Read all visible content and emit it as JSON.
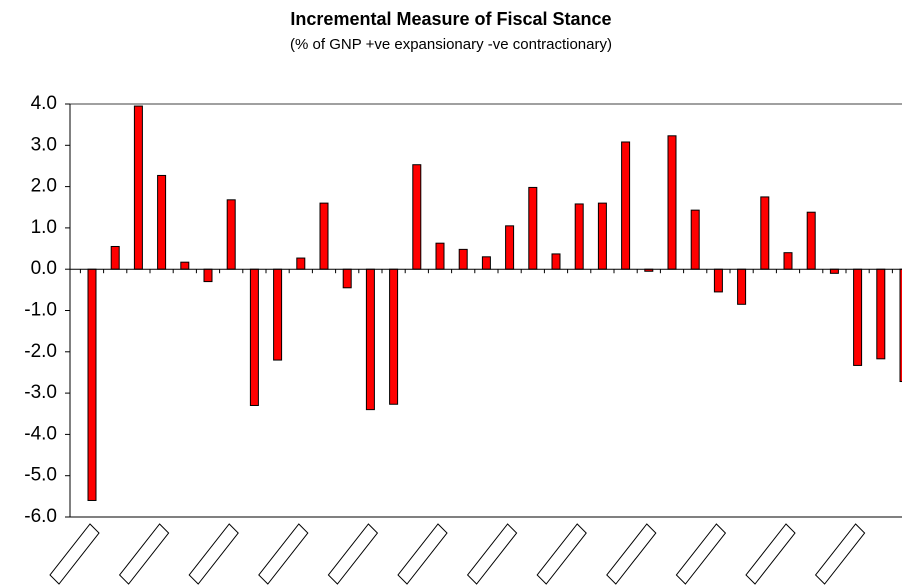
{
  "chart_data": {
    "type": "bar",
    "title": "Incremental Measure of Fiscal Stance",
    "subtitle": "(% of GNP +ve expansionary -ve contractionary)",
    "categories": [
      null,
      null,
      null,
      null,
      null,
      null,
      null,
      null,
      null,
      null,
      null,
      null,
      null,
      null,
      null,
      null,
      null,
      null,
      null,
      null,
      null,
      null,
      null,
      null,
      null,
      null,
      null,
      null,
      null,
      null,
      null,
      null,
      null,
      null,
      null,
      null
    ],
    "values": [
      -5.6,
      0.55,
      3.95,
      2.27,
      0.17,
      -0.3,
      1.68,
      -3.3,
      -2.2,
      0.27,
      1.6,
      -0.45,
      -3.4,
      -3.27,
      2.53,
      0.63,
      0.48,
      0.3,
      1.05,
      1.98,
      0.37,
      1.58,
      1.6,
      3.08,
      -0.05,
      3.23,
      1.43,
      -0.55,
      -0.85,
      1.75,
      0.4,
      1.38,
      -0.1,
      -2.33,
      -2.17,
      -2.72
    ],
    "color": "#ff0000",
    "ylim": [
      -6,
      4
    ],
    "yticks": [
      {
        "value": -6,
        "label": "-6.0"
      },
      {
        "value": -5,
        "label": "-5.0"
      },
      {
        "value": -4,
        "label": "-4.0"
      },
      {
        "value": -3,
        "label": "-3.0"
      },
      {
        "value": -2,
        "label": "-2.0"
      },
      {
        "value": -1,
        "label": "-1.0"
      },
      {
        "value": 0,
        "label": "0.0"
      },
      {
        "value": 1,
        "label": "1.0"
      },
      {
        "value": 2,
        "label": "2.0"
      },
      {
        "value": 3,
        "label": "3.0"
      },
      {
        "value": 4,
        "label": "4.0"
      }
    ]
  }
}
